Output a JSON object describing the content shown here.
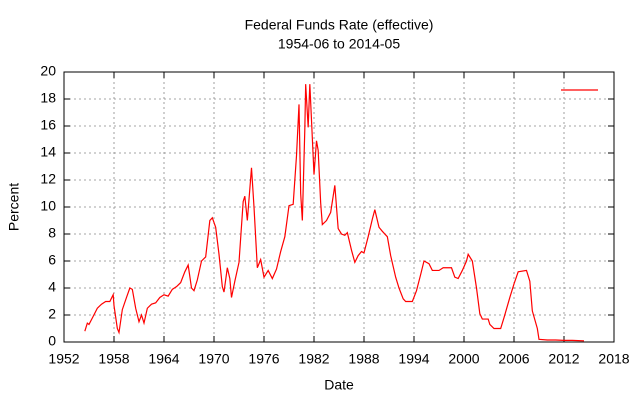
{
  "chart_data": {
    "type": "line",
    "title": "Federal Funds Rate (effective)",
    "subtitle": "1954-06 to 2014-05",
    "x_label": "Date",
    "y_label": "Percent",
    "x": [
      1954.5,
      1954.8,
      1955.0,
      1955.5,
      1956.0,
      1956.5,
      1957.0,
      1957.5,
      1957.9,
      1958.0,
      1958.4,
      1958.6,
      1959.0,
      1959.5,
      1959.9,
      1960.2,
      1960.6,
      1961.0,
      1961.3,
      1961.6,
      1962.0,
      1962.5,
      1963.0,
      1963.5,
      1964.0,
      1964.5,
      1965.0,
      1965.5,
      1966.0,
      1966.5,
      1966.9,
      1967.3,
      1967.6,
      1968.0,
      1968.5,
      1969.0,
      1969.5,
      1969.8,
      1970.2,
      1970.6,
      1971.0,
      1971.2,
      1971.6,
      1971.9,
      1972.1,
      1972.5,
      1973.0,
      1973.5,
      1973.7,
      1974.0,
      1974.5,
      1974.8,
      1975.2,
      1975.6,
      1976.0,
      1976.5,
      1977.0,
      1977.5,
      1978.0,
      1978.5,
      1979.0,
      1979.5,
      1979.9,
      1980.2,
      1980.4,
      1980.6,
      1980.9,
      1981.0,
      1981.3,
      1981.5,
      1981.8,
      1982.0,
      1982.3,
      1982.5,
      1982.8,
      1983.0,
      1983.5,
      1984.0,
      1984.5,
      1984.9,
      1985.3,
      1985.7,
      1986.0,
      1986.5,
      1986.9,
      1987.3,
      1987.7,
      1988.0,
      1988.5,
      1989.0,
      1989.3,
      1989.8,
      1990.2,
      1990.8,
      1991.2,
      1991.8,
      1992.2,
      1992.7,
      1993.0,
      1993.8,
      1994.3,
      1994.8,
      1995.2,
      1995.8,
      1996.2,
      1997.0,
      1997.5,
      1998.5,
      1998.9,
      1999.3,
      1999.8,
      2000.3,
      2000.5,
      2001.0,
      2001.5,
      2001.9,
      2002.2,
      2002.9,
      2003.1,
      2003.6,
      2004.4,
      2004.8,
      2005.5,
      2006.0,
      2006.5,
      2007.5,
      2007.9,
      2008.2,
      2008.8,
      2009.0,
      2010.0,
      2011.0,
      2012.0,
      2013.0,
      2014.4
    ],
    "series": [
      {
        "color": "#ff0000",
        "values": [
          0.8,
          1.4,
          1.3,
          1.9,
          2.5,
          2.8,
          3.0,
          3.0,
          3.5,
          2.7,
          1.0,
          0.7,
          2.4,
          3.3,
          4.0,
          3.9,
          2.5,
          1.5,
          2.0,
          1.4,
          2.5,
          2.8,
          2.9,
          3.3,
          3.5,
          3.4,
          3.9,
          4.1,
          4.4,
          5.2,
          5.7,
          4.0,
          3.8,
          4.6,
          6.0,
          6.3,
          9.0,
          9.2,
          8.5,
          6.5,
          4.1,
          3.7,
          5.5,
          4.7,
          3.3,
          4.5,
          5.9,
          10.4,
          10.8,
          9.0,
          12.9,
          10.0,
          5.5,
          6.1,
          4.8,
          5.3,
          4.7,
          5.4,
          6.7,
          7.8,
          10.1,
          10.2,
          13.8,
          17.6,
          11.0,
          9.0,
          15.8,
          19.1,
          15.9,
          19.1,
          15.1,
          12.4,
          14.9,
          14.2,
          10.3,
          8.7,
          9.0,
          9.6,
          11.6,
          8.4,
          8.0,
          7.9,
          8.1,
          6.8,
          5.9,
          6.4,
          6.7,
          6.6,
          7.8,
          9.1,
          9.8,
          8.5,
          8.2,
          7.8,
          6.4,
          4.8,
          4.0,
          3.2,
          3.0,
          3.0,
          3.8,
          5.0,
          6.0,
          5.8,
          5.3,
          5.3,
          5.5,
          5.5,
          4.8,
          4.7,
          5.3,
          6.0,
          6.5,
          6.0,
          4.0,
          2.1,
          1.7,
          1.7,
          1.3,
          1.0,
          1.0,
          1.8,
          3.3,
          4.3,
          5.2,
          5.3,
          4.5,
          2.3,
          1.0,
          0.2,
          0.15,
          0.15,
          0.12,
          0.12,
          0.09
        ]
      }
    ],
    "xlim": [
      1952,
      2018
    ],
    "xticks": [
      1952,
      1958,
      1964,
      1970,
      1976,
      1982,
      1988,
      1994,
      2000,
      2006,
      2012,
      2018
    ],
    "ylim": [
      0,
      20
    ],
    "yticks": [
      0,
      2,
      4,
      6,
      8,
      10,
      12,
      14,
      16,
      18,
      20
    ],
    "grid": true,
    "legend": "top right"
  }
}
